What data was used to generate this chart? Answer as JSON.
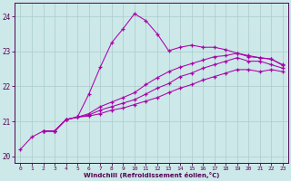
{
  "xlabel": "Windchill (Refroidissement éolien,°C)",
  "bg_color": "#cce8e8",
  "grid_color": "#aacccc",
  "line_color": "#aa00aa",
  "xlim": [
    -0.5,
    23.5
  ],
  "ylim": [
    19.8,
    24.4
  ],
  "yticks": [
    20,
    21,
    22,
    23,
    24
  ],
  "xticks": [
    0,
    1,
    2,
    3,
    4,
    5,
    6,
    7,
    8,
    9,
    10,
    11,
    12,
    13,
    14,
    15,
    16,
    17,
    18,
    19,
    20,
    21,
    22,
    23
  ],
  "lines": [
    {
      "x": [
        0,
        1,
        2,
        3,
        4,
        5,
        6,
        7,
        8,
        9,
        10,
        11,
        12,
        13,
        14,
        15,
        16,
        17,
        18,
        19,
        20,
        21,
        22,
        23
      ],
      "y": [
        20.2,
        20.55,
        20.72,
        20.72,
        21.05,
        21.12,
        21.78,
        22.55,
        23.25,
        23.65,
        24.08,
        23.88,
        23.5,
        23.02,
        23.12,
        23.18,
        23.12,
        23.12,
        23.05,
        22.95,
        22.85,
        22.82,
        22.78,
        22.6
      ]
    },
    {
      "x": [
        2,
        3,
        4,
        5,
        6,
        7,
        8,
        9,
        10,
        11,
        12,
        13,
        14,
        15,
        16,
        17,
        18,
        19,
        20,
        21,
        22,
        23
      ],
      "y": [
        20.72,
        20.72,
        21.05,
        21.12,
        21.22,
        21.42,
        21.55,
        21.68,
        21.82,
        22.05,
        22.25,
        22.42,
        22.55,
        22.65,
        22.75,
        22.85,
        22.88,
        22.95,
        22.88,
        22.82,
        22.78,
        22.62
      ]
    },
    {
      "x": [
        2,
        3,
        4,
        5,
        6,
        7,
        8,
        9,
        10,
        11,
        12,
        13,
        14,
        15,
        16,
        17,
        18,
        19,
        20,
        21,
        22,
        23
      ],
      "y": [
        20.72,
        20.72,
        21.05,
        21.12,
        21.18,
        21.32,
        21.42,
        21.52,
        21.62,
        21.78,
        21.95,
        22.08,
        22.28,
        22.38,
        22.52,
        22.62,
        22.72,
        22.82,
        22.72,
        22.72,
        22.62,
        22.52
      ]
    },
    {
      "x": [
        2,
        3,
        4,
        5,
        6,
        7,
        8,
        9,
        10,
        11,
        12,
        13,
        14,
        15,
        16,
        17,
        18,
        19,
        20,
        21,
        22,
        23
      ],
      "y": [
        20.72,
        20.72,
        21.05,
        21.12,
        21.15,
        21.22,
        21.32,
        21.38,
        21.48,
        21.58,
        21.68,
        21.82,
        21.95,
        22.05,
        22.18,
        22.28,
        22.38,
        22.48,
        22.48,
        22.42,
        22.48,
        22.42
      ]
    }
  ]
}
